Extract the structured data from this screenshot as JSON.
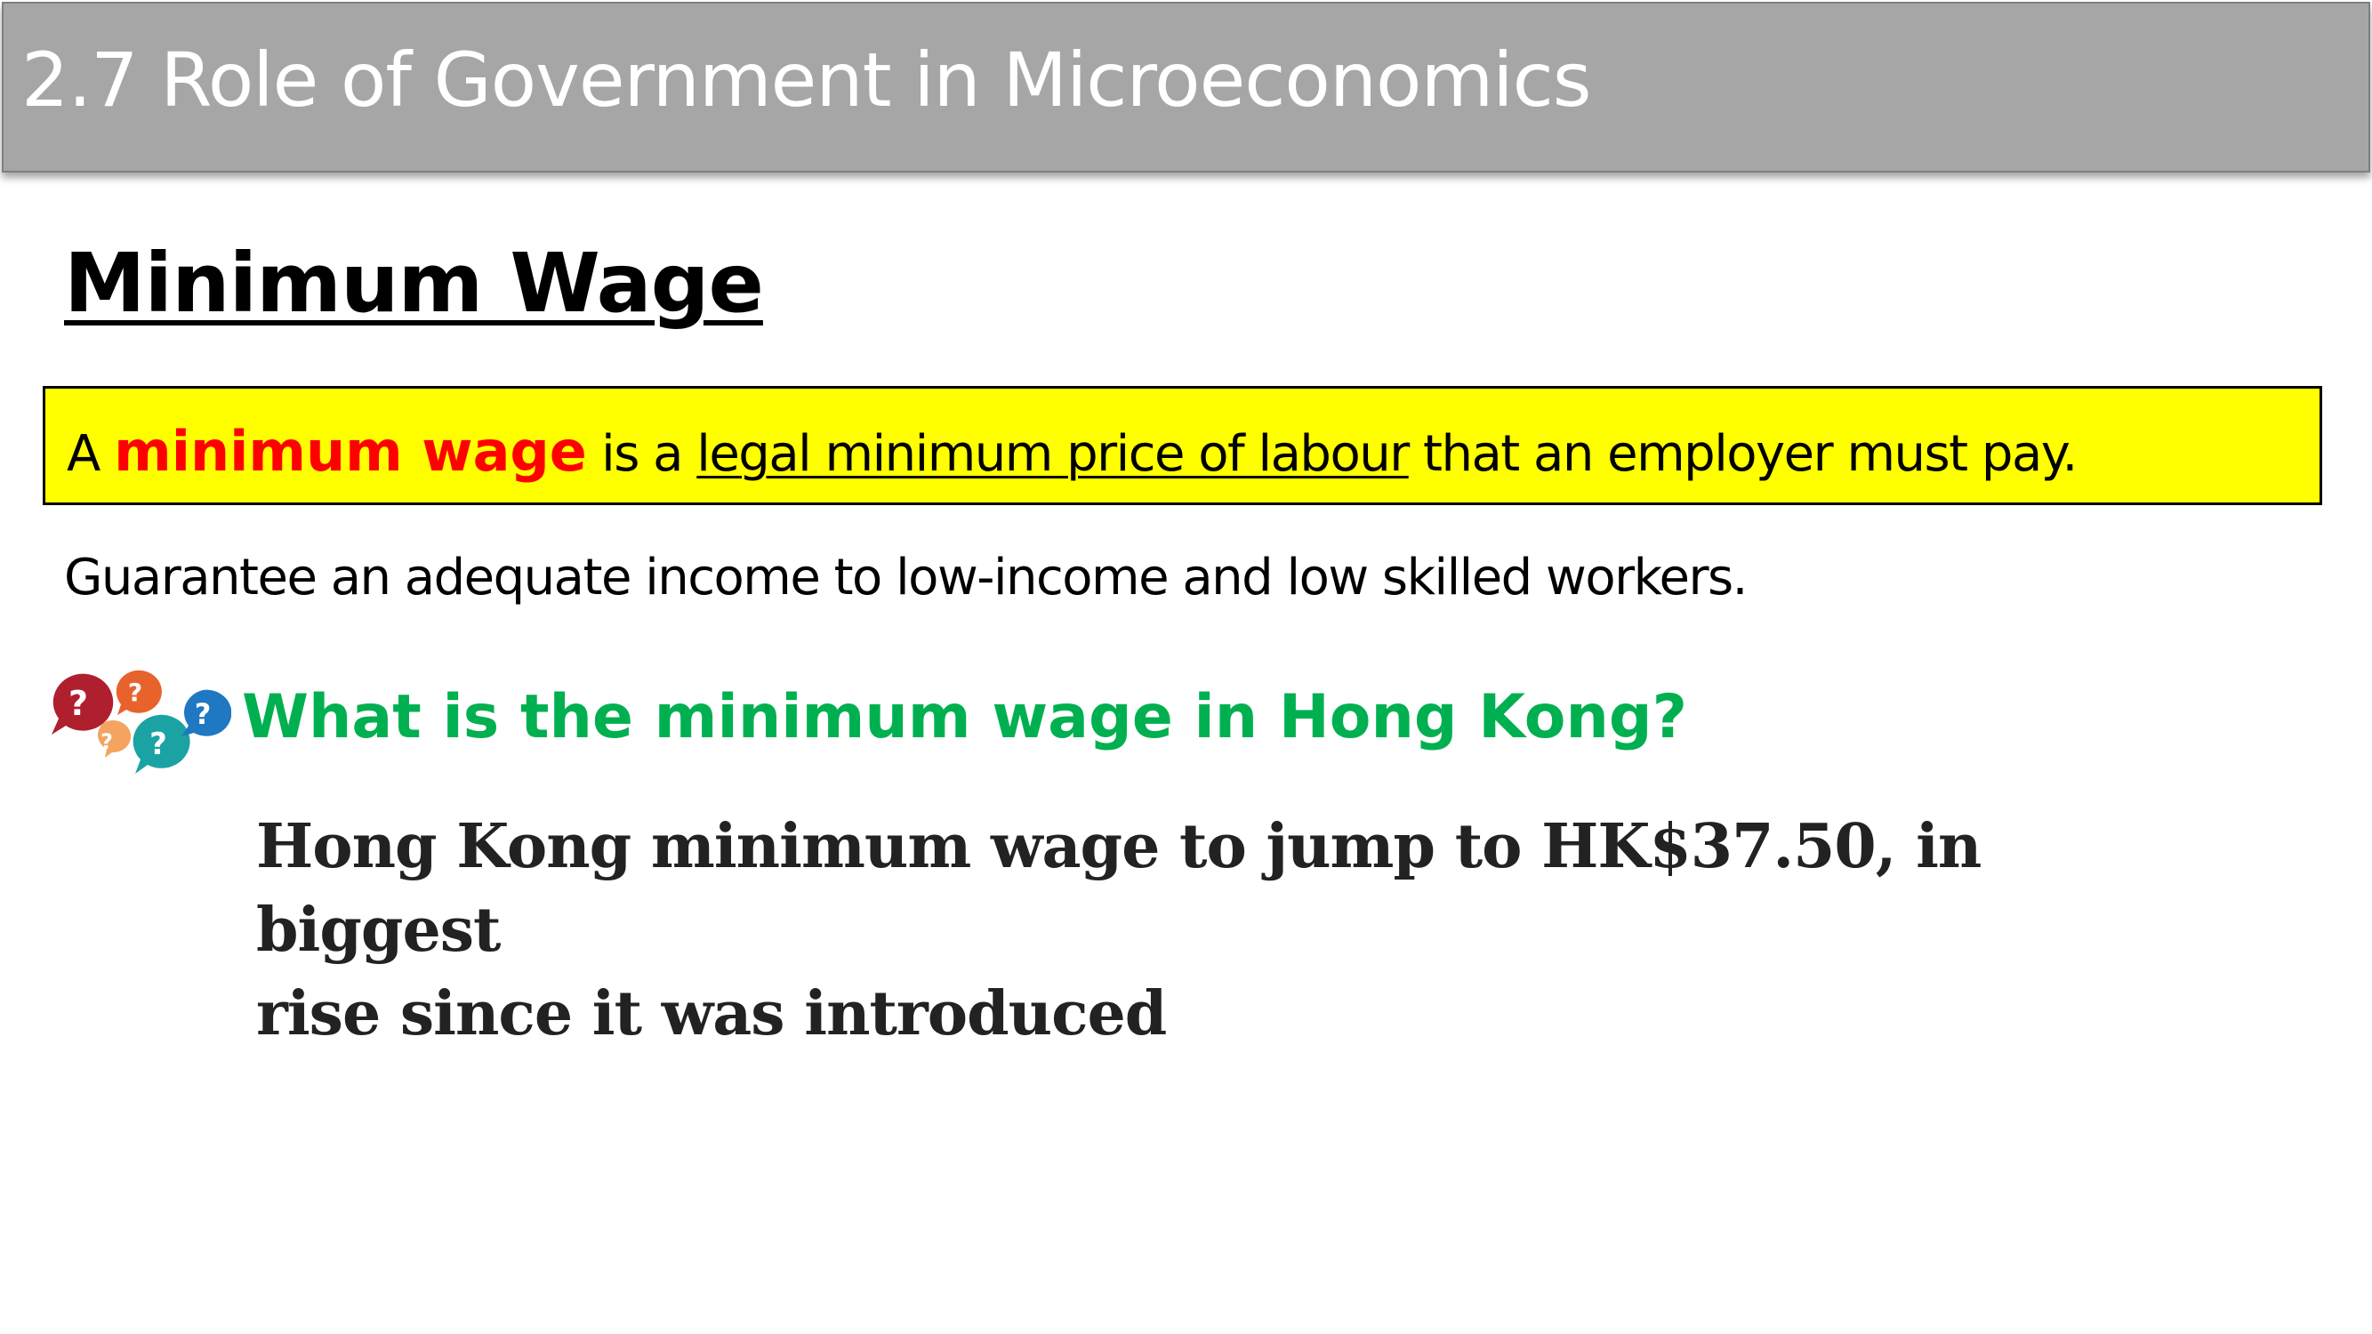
{
  "slide": {
    "title": "2.7 Role of Government in Microeconomics",
    "heading": "Minimum Wage",
    "definition": {
      "prefix": "A ",
      "term": "minimum wage",
      "middle": " is a ",
      "underlined": "legal minimum price of labour",
      "suffix": " that an employer must pay."
    },
    "purpose": "Guarantee an adequate income to low-income and low skilled workers.",
    "question_icon": "question-bubbles-icon",
    "question": "What is the minimum wage in Hong Kong?",
    "news_headline": {
      "line1": "Hong Kong minimum wage to jump to HK$37.50, in biggest",
      "line2": "rise since it was introduced"
    }
  },
  "colors": {
    "title_bar": "#a6a6a6",
    "definition_bg": "#ffff00",
    "term": "#ff0000",
    "question": "#00b050"
  }
}
